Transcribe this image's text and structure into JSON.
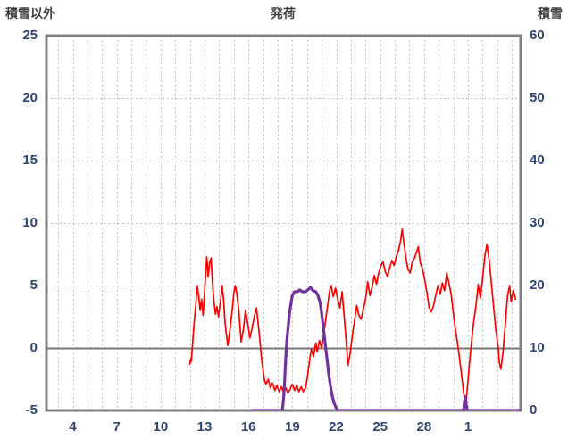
{
  "titles": {
    "left_axis": "積雪以外",
    "center": "発荷",
    "right_axis": "積雪"
  },
  "colors": {
    "series_other": "#ff0000",
    "series_snow": "#7030a0",
    "grid": "#bfbfbf",
    "frame": "#808080",
    "zero_line": "#7a7a7a",
    "tick_label": "#2e4372",
    "title": "#3f3f3f",
    "background": "#ffffff"
  },
  "chart_data": {
    "type": "line",
    "title": "発荷",
    "left_axis": {
      "label": "積雪以外",
      "min": -5,
      "max": 25,
      "ticks": [
        -5,
        0,
        5,
        10,
        15,
        20,
        25
      ]
    },
    "right_axis": {
      "label": "積雪",
      "min": 0,
      "max": 60,
      "ticks": [
        0,
        10,
        20,
        30,
        40,
        50,
        60
      ]
    },
    "x_axis": {
      "min": 2.2,
      "max": 34.6,
      "tick_days": [
        4,
        7,
        10,
        13,
        16,
        19,
        22,
        25,
        28,
        31
      ],
      "tick_labels": [
        "4",
        "7",
        "10",
        "13",
        "16",
        "19",
        "22",
        "25",
        "28",
        "1"
      ],
      "grid_step_days": 1
    },
    "grid": {
      "vertical": "daily-dashed",
      "horizontal": "at-left-ticks-dashed",
      "zero_line": "solid"
    },
    "legend": "none",
    "series": [
      {
        "name": "積雪以外",
        "axis": "left",
        "color": "#ff0000",
        "width": 1.7,
        "points": [
          [
            12.0,
            -1.3
          ],
          [
            12.05,
            -0.9
          ],
          [
            12.1,
            -1.1
          ],
          [
            12.2,
            0.6
          ],
          [
            12.3,
            2.1
          ],
          [
            12.4,
            3.4
          ],
          [
            12.5,
            5.0
          ],
          [
            12.6,
            4.2
          ],
          [
            12.7,
            3.0
          ],
          [
            12.8,
            3.9
          ],
          [
            12.9,
            2.6
          ],
          [
            13.0,
            4.4
          ],
          [
            13.1,
            6.4
          ],
          [
            13.15,
            7.3
          ],
          [
            13.25,
            5.7
          ],
          [
            13.35,
            6.8
          ],
          [
            13.45,
            7.2
          ],
          [
            13.55,
            5.1
          ],
          [
            13.65,
            3.6
          ],
          [
            13.75,
            2.7
          ],
          [
            13.85,
            3.3
          ],
          [
            13.95,
            2.5
          ],
          [
            14.1,
            3.8
          ],
          [
            14.2,
            5.0
          ],
          [
            14.3,
            3.9
          ],
          [
            14.4,
            2.1
          ],
          [
            14.5,
            1.0
          ],
          [
            14.6,
            0.2
          ],
          [
            14.75,
            1.6
          ],
          [
            14.9,
            3.1
          ],
          [
            15.0,
            4.4
          ],
          [
            15.1,
            5.0
          ],
          [
            15.2,
            4.4
          ],
          [
            15.35,
            2.9
          ],
          [
            15.5,
            0.5
          ],
          [
            15.65,
            1.4
          ],
          [
            15.8,
            3.0
          ],
          [
            15.95,
            2.0
          ],
          [
            16.1,
            0.8
          ],
          [
            16.25,
            1.6
          ],
          [
            16.4,
            2.5
          ],
          [
            16.55,
            3.2
          ],
          [
            16.7,
            1.6
          ],
          [
            16.8,
            0.4
          ],
          [
            16.9,
            -0.9
          ],
          [
            17.0,
            -1.8
          ],
          [
            17.1,
            -2.6
          ],
          [
            17.2,
            -2.9
          ],
          [
            17.35,
            -2.5
          ],
          [
            17.5,
            -3.2
          ],
          [
            17.65,
            -2.8
          ],
          [
            17.8,
            -3.4
          ],
          [
            17.95,
            -3.0
          ],
          [
            18.1,
            -3.5
          ],
          [
            18.25,
            -3.1
          ],
          [
            18.4,
            -3.6
          ],
          [
            18.55,
            -3.2
          ],
          [
            18.7,
            -3.6
          ],
          [
            18.85,
            -3.3
          ],
          [
            19.0,
            -2.9
          ],
          [
            19.15,
            -3.4
          ],
          [
            19.3,
            -3.0
          ],
          [
            19.45,
            -3.5
          ],
          [
            19.6,
            -3.1
          ],
          [
            19.75,
            -3.5
          ],
          [
            19.9,
            -3.2
          ],
          [
            20.05,
            -2.2
          ],
          [
            20.15,
            -1.2
          ],
          [
            20.3,
            -0.1
          ],
          [
            20.45,
            -0.7
          ],
          [
            20.6,
            0.4
          ],
          [
            20.7,
            -0.3
          ],
          [
            20.85,
            0.6
          ],
          [
            21.0,
            0.0
          ],
          [
            21.1,
            0.8
          ],
          [
            21.25,
            2.0
          ],
          [
            21.4,
            3.3
          ],
          [
            21.55,
            4.6
          ],
          [
            21.65,
            5.0
          ],
          [
            21.8,
            4.1
          ],
          [
            21.95,
            4.8
          ],
          [
            22.1,
            3.9
          ],
          [
            22.25,
            3.2
          ],
          [
            22.4,
            4.5
          ],
          [
            22.55,
            2.4
          ],
          [
            22.7,
            0.2
          ],
          [
            22.8,
            -1.4
          ],
          [
            22.95,
            -0.4
          ],
          [
            23.1,
            1.0
          ],
          [
            23.25,
            2.2
          ],
          [
            23.4,
            3.4
          ],
          [
            23.55,
            2.6
          ],
          [
            23.7,
            2.3
          ],
          [
            23.85,
            3.1
          ],
          [
            24.0,
            3.9
          ],
          [
            24.15,
            5.3
          ],
          [
            24.3,
            4.2
          ],
          [
            24.45,
            4.9
          ],
          [
            24.6,
            5.8
          ],
          [
            24.75,
            5.1
          ],
          [
            24.9,
            6.0
          ],
          [
            25.05,
            6.6
          ],
          [
            25.2,
            6.9
          ],
          [
            25.35,
            6.1
          ],
          [
            25.5,
            5.7
          ],
          [
            25.65,
            6.4
          ],
          [
            25.8,
            7.0
          ],
          [
            25.95,
            6.6
          ],
          [
            26.1,
            7.3
          ],
          [
            26.25,
            7.8
          ],
          [
            26.4,
            8.6
          ],
          [
            26.5,
            9.5
          ],
          [
            26.6,
            8.6
          ],
          [
            26.75,
            7.3
          ],
          [
            26.9,
            6.3
          ],
          [
            27.05,
            6.0
          ],
          [
            27.2,
            6.9
          ],
          [
            27.35,
            7.2
          ],
          [
            27.5,
            7.7
          ],
          [
            27.6,
            8.1
          ],
          [
            27.75,
            6.8
          ],
          [
            27.9,
            6.3
          ],
          [
            28.05,
            5.4
          ],
          [
            28.2,
            4.4
          ],
          [
            28.35,
            3.2
          ],
          [
            28.5,
            2.9
          ],
          [
            28.65,
            3.4
          ],
          [
            28.8,
            4.2
          ],
          [
            28.95,
            5.0
          ],
          [
            29.1,
            4.3
          ],
          [
            29.25,
            5.2
          ],
          [
            29.4,
            4.6
          ],
          [
            29.55,
            6.0
          ],
          [
            29.7,
            5.2
          ],
          [
            29.85,
            4.3
          ],
          [
            30.0,
            2.8
          ],
          [
            30.15,
            1.4
          ],
          [
            30.3,
            0.3
          ],
          [
            30.45,
            -1.1
          ],
          [
            30.6,
            -2.5
          ],
          [
            30.75,
            -4.0
          ],
          [
            30.85,
            -4.6
          ],
          [
            30.95,
            -3.3
          ],
          [
            31.1,
            -1.3
          ],
          [
            31.25,
            0.6
          ],
          [
            31.4,
            2.2
          ],
          [
            31.55,
            3.4
          ],
          [
            31.7,
            5.1
          ],
          [
            31.85,
            4.0
          ],
          [
            32.0,
            5.6
          ],
          [
            32.15,
            7.3
          ],
          [
            32.3,
            8.3
          ],
          [
            32.45,
            7.0
          ],
          [
            32.6,
            5.2
          ],
          [
            32.75,
            3.3
          ],
          [
            32.9,
            1.5
          ],
          [
            33.05,
            0.2
          ],
          [
            33.15,
            -1.2
          ],
          [
            33.25,
            -1.7
          ],
          [
            33.4,
            -0.3
          ],
          [
            33.55,
            1.9
          ],
          [
            33.7,
            4.2
          ],
          [
            33.85,
            5.0
          ],
          [
            33.95,
            3.7
          ],
          [
            34.1,
            4.6
          ],
          [
            34.25,
            3.9
          ]
        ]
      },
      {
        "name": "積雪",
        "axis": "right",
        "color": "#7030a0",
        "width": 3.2,
        "points": [
          [
            16.3,
            0
          ],
          [
            18.3,
            0
          ],
          [
            18.36,
            0.8
          ],
          [
            18.42,
            2.5
          ],
          [
            18.48,
            5.0
          ],
          [
            18.54,
            8.0
          ],
          [
            18.62,
            11.0
          ],
          [
            18.7,
            13.0
          ],
          [
            18.8,
            15.5
          ],
          [
            18.9,
            17.0
          ],
          [
            19.0,
            18.4
          ],
          [
            19.15,
            19.0
          ],
          [
            19.35,
            19.0
          ],
          [
            19.5,
            19.3
          ],
          [
            19.7,
            19.0
          ],
          [
            19.9,
            19.0
          ],
          [
            20.1,
            19.4
          ],
          [
            20.25,
            19.7
          ],
          [
            20.4,
            19.2
          ],
          [
            20.6,
            19.0
          ],
          [
            20.75,
            18.4
          ],
          [
            20.9,
            17.2
          ],
          [
            21.0,
            15.6
          ],
          [
            21.1,
            13.6
          ],
          [
            21.2,
            11.6
          ],
          [
            21.3,
            9.6
          ],
          [
            21.4,
            7.6
          ],
          [
            21.5,
            5.6
          ],
          [
            21.6,
            4.0
          ],
          [
            21.72,
            2.4
          ],
          [
            21.85,
            1.2
          ],
          [
            22.0,
            0.4
          ],
          [
            22.12,
            0
          ],
          [
            30.7,
            0
          ],
          [
            30.76,
            1.4
          ],
          [
            30.82,
            2.2
          ],
          [
            30.88,
            1.0
          ],
          [
            30.94,
            0
          ],
          [
            34.55,
            0
          ]
        ]
      }
    ]
  }
}
